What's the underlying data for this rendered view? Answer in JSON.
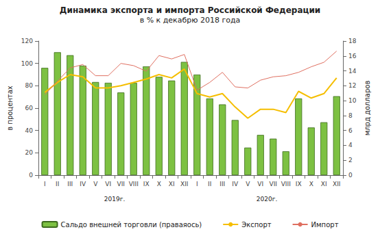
{
  "chart_data": {
    "type": "bar",
    "title": "Динамика экспорта и импорта Российской Федерации",
    "subtitle": "в % к декабрю 2018 года",
    "y_label": "в процентах",
    "y2_label": "млрд долларов",
    "annotations": [
      "2019г.",
      "2020г."
    ],
    "categories": [
      "I",
      "II",
      "III",
      "IV",
      "V",
      "VI",
      "VII",
      "VIII",
      "IX",
      "X",
      "XI",
      "XII",
      "I",
      "II",
      "III",
      "IV",
      "V",
      "VI",
      "VII",
      "VIII",
      "IX",
      "X",
      "XI",
      "XII"
    ],
    "series": [
      {
        "name": "Сальдо внешней торговли (праваяось)",
        "type": "bar",
        "axis": "y2",
        "color": "#7dc142",
        "values": [
          14.4,
          16.5,
          16.1,
          14.7,
          12.5,
          12.4,
          11.1,
          12.4,
          14.6,
          13.2,
          12.7,
          15.2,
          13.5,
          10.3,
          9.5,
          7.4,
          3.7,
          5.4,
          4.9,
          3.2,
          10.3,
          6.4,
          7.1,
          10.6
        ]
      },
      {
        "name": "Экспорт",
        "type": "line",
        "color": "#f5be00",
        "values": [
          74,
          83,
          90,
          88,
          78,
          78,
          80,
          83,
          86,
          90,
          87,
          95,
          73,
          70,
          73,
          61,
          51,
          59,
          59,
          56,
          75,
          69,
          73,
          87
        ]
      },
      {
        "name": "Импорт",
        "type": "line",
        "color": "#df6f60",
        "values": [
          72,
          84,
          96,
          99,
          89,
          89,
          100,
          98,
          93,
          107,
          104,
          108,
          76,
          83,
          92,
          79,
          78,
          85,
          88,
          89,
          92,
          97,
          101,
          111
        ]
      }
    ],
    "ylim": [
      0,
      120
    ],
    "yticks": [
      0,
      20,
      40,
      60,
      80,
      100,
      120
    ],
    "y2lim": [
      0,
      18
    ],
    "y2ticks": [
      0,
      2,
      4,
      6,
      8,
      10,
      12,
      14,
      16,
      18
    ],
    "grid": false,
    "legend": "bottom"
  }
}
